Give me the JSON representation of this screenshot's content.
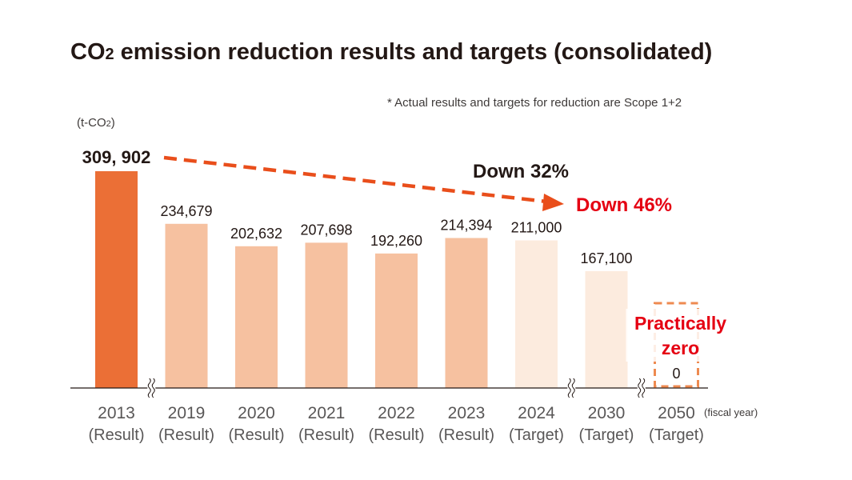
{
  "chart_data": {
    "type": "bar",
    "title_prefix": "CO",
    "title_sub": "2",
    "title_suffix": " emission reduction results and targets (consolidated)",
    "note": "* Actual results and targets for reduction are Scope 1+2",
    "unit_label_prefix": "(t-CO",
    "unit_label_sub": "2",
    "unit_label_suffix": ")",
    "x_unit": "(fiscal year)",
    "categories": [
      "2013",
      "2019",
      "2020",
      "2021",
      "2022",
      "2023",
      "2024",
      "2030",
      "2050"
    ],
    "category_notes": [
      "(Result)",
      "(Result)",
      "(Result)",
      "(Result)",
      "(Result)",
      "(Result)",
      "(Target)",
      "(Target)",
      "(Target)"
    ],
    "values": [
      309902,
      234679,
      202632,
      207698,
      192260,
      214394,
      211000,
      167100,
      0
    ],
    "value_labels": [
      "309, 902",
      "234,679",
      "202,632",
      "207,698",
      "192,260",
      "214,394",
      "211,000",
      "167,100",
      "0"
    ],
    "bar_colors": [
      "#eb6f36",
      "#f6c1a0",
      "#f6c1a0",
      "#f6c1a0",
      "#f6c1a0",
      "#f6c1a0",
      "#fcebde",
      "#fcebde",
      "none"
    ],
    "axis_break_after": [
      "2013",
      "2024",
      "2030"
    ],
    "ylim": [
      0,
      309902
    ],
    "annotations": {
      "down_2024": "Down 32%",
      "down_2030": "Down 46%",
      "zero_line1": "Practically",
      "zero_line2": "zero"
    },
    "colors": {
      "arrow": "#e94e1b",
      "highlight": "#e50012",
      "target_box": "#ee8a50"
    }
  }
}
